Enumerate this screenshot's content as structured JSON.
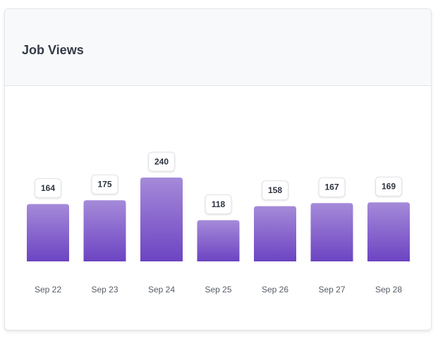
{
  "card": {
    "title": "Job Views"
  },
  "chart_data": {
    "type": "bar",
    "title": "Job Views",
    "categories": [
      "Sep 22",
      "Sep 23",
      "Sep 24",
      "Sep 25",
      "Sep 26",
      "Sep 27",
      "Sep 28"
    ],
    "values": [
      164,
      175,
      240,
      118,
      158,
      167,
      169
    ],
    "xlabel": "",
    "ylabel": "",
    "ylim": [
      0,
      240
    ],
    "grid": false,
    "legend": "none",
    "data_labels": true,
    "colors": {
      "bar_top": "#a58ad9",
      "bar_bottom": "#6c44c2"
    }
  }
}
